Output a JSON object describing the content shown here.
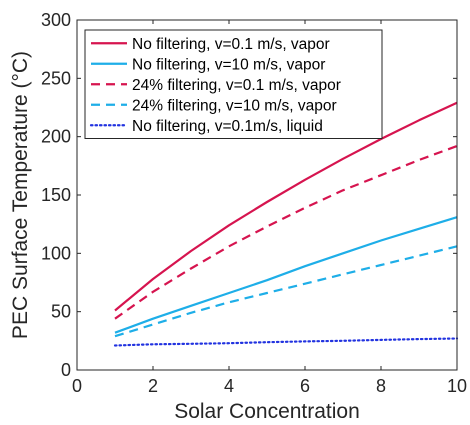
{
  "chart_data": {
    "type": "line",
    "xlabel": "Solar Concentration",
    "ylabel": "PEC Surface Temperature (°C)",
    "xlim": [
      0,
      10
    ],
    "ylim": [
      0,
      300
    ],
    "xticks": [
      0,
      2,
      4,
      6,
      8,
      10
    ],
    "yticks": [
      0,
      50,
      100,
      150,
      200,
      250,
      300
    ],
    "grid": false,
    "legend_position": "top-left",
    "series": [
      {
        "name": "No filtering, v=0.1 m/s, vapor",
        "color": "#d6144f",
        "dash": "solid",
        "x": [
          1,
          2,
          3,
          4,
          5,
          6,
          7,
          8,
          9,
          10
        ],
        "y": [
          51,
          78,
          102,
          124,
          144,
          163,
          181,
          198,
          214,
          229
        ]
      },
      {
        "name": "No filtering, v=10 m/s, vapor",
        "color": "#1eaee8",
        "dash": "solid",
        "x": [
          1,
          2,
          3,
          4,
          5,
          6,
          7,
          8,
          9,
          10
        ],
        "y": [
          32,
          44,
          55,
          66,
          77,
          89,
          100,
          111,
          121,
          131
        ]
      },
      {
        "name": "24% filtering, v=0.1 m/s, vapor",
        "color": "#d6144f",
        "dash": "dashed",
        "x": [
          1,
          2,
          3,
          4,
          5,
          6,
          7,
          8,
          9,
          10
        ],
        "y": [
          44,
          67,
          87,
          106,
          123,
          139,
          154,
          167,
          180,
          192
        ]
      },
      {
        "name": "24% filtering, v=10 m/s, vapor",
        "color": "#1eaee8",
        "dash": "dashed",
        "x": [
          1,
          2,
          3,
          4,
          5,
          6,
          7,
          8,
          9,
          10
        ],
        "y": [
          29,
          39,
          49,
          58,
          66,
          74,
          82,
          90,
          98,
          106
        ]
      },
      {
        "name": "No filtering, v=0.1m/s, liquid",
        "color": "#2233e0",
        "dash": "dotted",
        "x": [
          1,
          2,
          3,
          4,
          5,
          6,
          7,
          8,
          9,
          10
        ],
        "y": [
          21,
          22,
          22.5,
          23,
          23.8,
          24.5,
          25,
          25.8,
          26.5,
          27
        ]
      }
    ]
  }
}
